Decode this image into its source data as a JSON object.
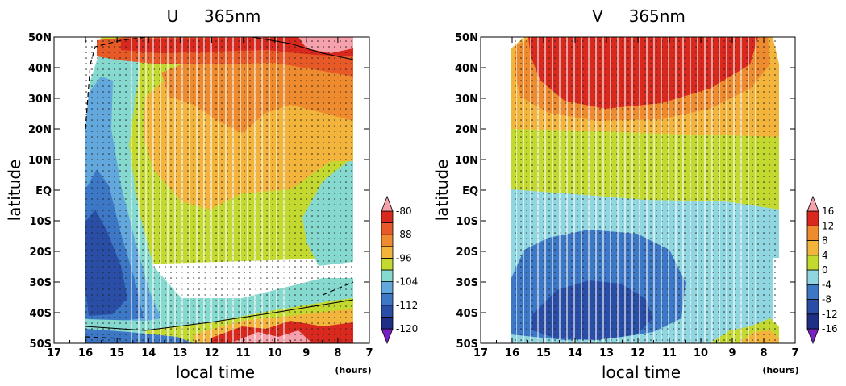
{
  "chart_data": [
    {
      "type": "heatmap",
      "title": "U     365nm",
      "xlabel": "local time",
      "ylabel": "latitude",
      "x_units": "(hours)",
      "x_ticks": [
        "17",
        "16",
        "15",
        "14",
        "13",
        "12",
        "11",
        "10",
        "9",
        "8",
        "7"
      ],
      "x_range": [
        17,
        7
      ],
      "y_ticks": [
        "50N",
        "40N",
        "30N",
        "20N",
        "10N",
        "EQ",
        "10S",
        "20S",
        "30S",
        "40S",
        "50S"
      ],
      "y_range": [
        50,
        -50
      ],
      "colorbar": {
        "labels": [
          "-80",
          "-88",
          "-96",
          "-104",
          "-112",
          "-120"
        ],
        "levels": [
          -120,
          -116,
          -112,
          -108,
          -104,
          -100,
          -96,
          -92,
          -88,
          -84,
          -80,
          -76
        ],
        "colors": [
          "#7a1fc4",
          "#1f2f86",
          "#2a4ea6",
          "#3c78c6",
          "#63a8dd",
          "#86d9cf",
          "#c3d92f",
          "#f3b43c",
          "#ef8b2f",
          "#e75a27",
          "#d9281d",
          "#f6a2ad"
        ]
      },
      "overlays": [
        "stippling",
        "contour"
      ],
      "grid": false,
      "legend": "colorbar-right"
    },
    {
      "type": "heatmap",
      "title": "V     365nm",
      "xlabel": "local time",
      "ylabel": "latitude",
      "x_units": "(hours)",
      "x_ticks": [
        "17",
        "16",
        "15",
        "14",
        "13",
        "12",
        "11",
        "10",
        "9",
        "8",
        "7"
      ],
      "x_range": [
        17,
        7
      ],
      "y_ticks": [
        "50N",
        "40N",
        "30N",
        "20N",
        "10N",
        "EQ",
        "10S",
        "20S",
        "30S",
        "40S",
        "50S"
      ],
      "y_range": [
        50,
        -50
      ],
      "colorbar": {
        "labels": [
          "16",
          "12",
          "8",
          "4",
          "0",
          "-4",
          "-8",
          "-12",
          "-16"
        ],
        "levels": [
          -16,
          -12,
          -8,
          -4,
          0,
          4,
          8,
          12,
          16
        ],
        "colors": [
          "#7a1fc4",
          "#1f2f86",
          "#2a4ea6",
          "#3c78c6",
          "#8fd6e0",
          "#c3d92f",
          "#f3b43c",
          "#ef8b2f",
          "#d9281d",
          "#f6a2ad"
        ]
      },
      "overlays": [
        "stippling"
      ],
      "grid": false,
      "legend": "colorbar-right"
    }
  ]
}
